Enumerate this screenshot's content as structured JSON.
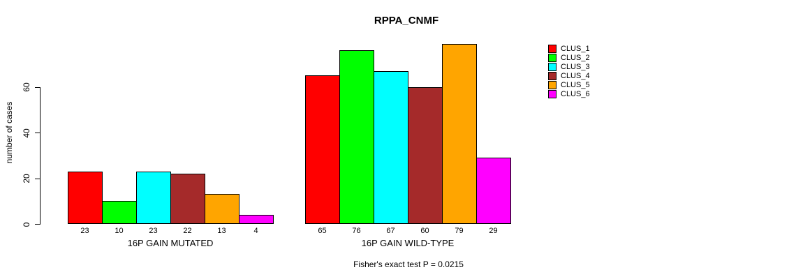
{
  "chart_data": {
    "type": "bar",
    "title": "RPPA_CNMF",
    "ylabel": "number of cases",
    "xlabel": "",
    "yticks": [
      0,
      20,
      40,
      60
    ],
    "ylim": [
      0,
      80
    ],
    "grid": false,
    "legend_position": "right",
    "categories": [
      "16P GAIN MUTATED",
      "16P GAIN WILD-TYPE"
    ],
    "series": [
      {
        "name": "CLUS_1",
        "color": "#ff0000",
        "values": [
          23,
          65
        ]
      },
      {
        "name": "CLUS_2",
        "color": "#00ff00",
        "values": [
          10,
          76
        ]
      },
      {
        "name": "CLUS_3",
        "color": "#00ffff",
        "values": [
          23,
          67
        ]
      },
      {
        "name": "CLUS_4",
        "color": "#a52a2a",
        "values": [
          22,
          60
        ]
      },
      {
        "name": "CLUS_5",
        "color": "#ffa500",
        "values": [
          13,
          79
        ]
      },
      {
        "name": "CLUS_6",
        "color": "#ff00ff",
        "values": [
          4,
          29
        ]
      }
    ],
    "bar_value_labels": true,
    "annotation": "Fisher's exact test P = 0.0215",
    "axis_color": "#000000",
    "bar_border_color": "#000000"
  }
}
